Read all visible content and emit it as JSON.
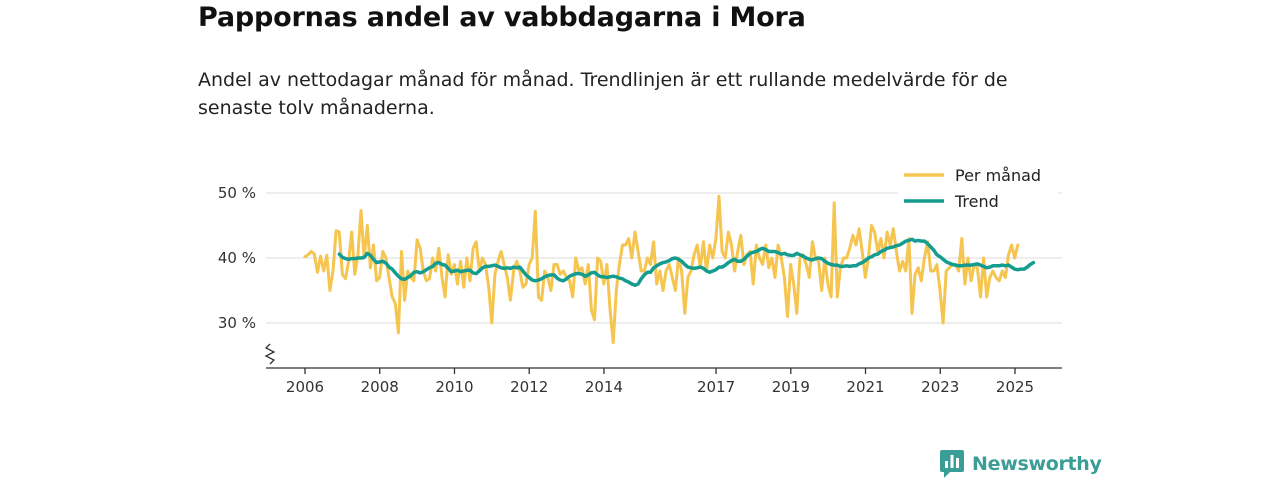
{
  "header": {
    "title": "Pappornas andel av vabbdagarna i Mora",
    "subtitle": "Andel av nettodagar månad för månad. Trendlinjen är ett rullande medelvärde för de senaste tolv månaderna."
  },
  "brand": {
    "name": "Newsworthy"
  },
  "colors": {
    "monthly": "#f6c550",
    "trend": "#149c8f",
    "grid": "#dddddd",
    "axis": "#333333"
  },
  "chart_data": {
    "type": "line",
    "x_start_year": 2006,
    "x_end_year": 2025.5,
    "ylim": [
      23,
      52
    ],
    "y_ticks": [
      30,
      40,
      50
    ],
    "y_tick_labels": [
      "30 %",
      "40 %",
      "50 %"
    ],
    "x_ticks": [
      2006,
      2008,
      2010,
      2012,
      2014,
      2017,
      2019,
      2021,
      2023,
      2025
    ],
    "x_tick_labels": [
      "2006",
      "2008",
      "2010",
      "2012",
      "2014",
      "2017",
      "2019",
      "2021",
      "2023",
      "2025"
    ],
    "legend": [
      "Per månad",
      "Trend"
    ],
    "legend_position": "top-right",
    "series": [
      {
        "name": "Per månad",
        "start": 2006.0,
        "step": 0.0833,
        "values": [
          40.2,
          40.5,
          41.0,
          40.6,
          37.8,
          40.3,
          38.0,
          40.4,
          35.0,
          38.0,
          44.2,
          44.0,
          37.5,
          36.8,
          39.5,
          44.0,
          37.5,
          40.5,
          47.3,
          40.0,
          45.0,
          38.5,
          42.0,
          36.5,
          37.0,
          41.0,
          40.0,
          37.0,
          34.0,
          33.0,
          28.5,
          41.0,
          33.5,
          38.0,
          37.0,
          36.5,
          42.8,
          41.5,
          38.0,
          36.5,
          36.8,
          40.0,
          38.0,
          41.5,
          37.0,
          34.0,
          40.5,
          37.5,
          39.0,
          36.0,
          39.5,
          35.5,
          40.0,
          36.5,
          41.5,
          42.5,
          38.0,
          40.0,
          39.0,
          35.5,
          30.0,
          37.5,
          39.5,
          41.0,
          39.0,
          37.0,
          33.5,
          38.0,
          39.5,
          38.0,
          35.5,
          36.0,
          39.0,
          40.0,
          47.2,
          34.0,
          33.5,
          38.0,
          37.0,
          35.0,
          39.0,
          39.0,
          37.5,
          38.0,
          37.0,
          36.5,
          34.0,
          40.0,
          38.0,
          38.5,
          36.0,
          39.0,
          32.0,
          30.5,
          40.0,
          39.5,
          36.0,
          39.0,
          32.0,
          27.0,
          35.0,
          39.0,
          42.0,
          42.0,
          43.0,
          40.0,
          44.0,
          41.0,
          38.0,
          38.0,
          40.0,
          39.0,
          42.5,
          36.0,
          38.0,
          35.0,
          38.0,
          39.0,
          37.0,
          35.0,
          40.0,
          38.0,
          31.5,
          37.0,
          38.0,
          40.5,
          42.0,
          38.5,
          42.5,
          38.0,
          42.0,
          40.0,
          43.0,
          49.5,
          41.0,
          40.0,
          44.0,
          42.0,
          38.0,
          41.0,
          43.5,
          39.0,
          40.5,
          41.0,
          36.0,
          42.0,
          40.0,
          39.0,
          42.0,
          38.5,
          40.0,
          37.0,
          42.0,
          40.0,
          37.0,
          31.0,
          39.0,
          36.0,
          31.5,
          40.0,
          40.5,
          39.0,
          37.0,
          42.5,
          40.0,
          39.5,
          35.0,
          40.0,
          36.0,
          34.0,
          48.5,
          34.0,
          38.5,
          40.0,
          40.0,
          41.5,
          43.5,
          42.0,
          44.5,
          41.0,
          37.0,
          40.0,
          45.0,
          44.0,
          41.0,
          43.0,
          40.0,
          44.0,
          42.0,
          44.5,
          41.0,
          38.0,
          39.5,
          38.0,
          43.0,
          31.5,
          37.5,
          38.5,
          36.5,
          40.0,
          42.5,
          38.0,
          38.0,
          39.0,
          35.0,
          30.0,
          38.0,
          38.5,
          39.0,
          39.0,
          38.0,
          43.0,
          36.0,
          40.0,
          36.5,
          39.0,
          38.5,
          34.0,
          40.0,
          34.0,
          37.0,
          38.0,
          37.0,
          36.5,
          38.0,
          37.0,
          40.5,
          42.0,
          40.0,
          42.0
        ]
      },
      {
        "name": "Trend",
        "start": 2006.917,
        "step": 0.0833,
        "values": [
          40.6,
          40.1,
          39.9,
          39.8,
          39.9,
          39.9,
          40.0,
          40.0,
          40.1,
          40.7,
          40.4,
          39.8,
          39.3,
          39.4,
          39.5,
          39.2,
          38.6,
          38.3,
          37.7,
          37.2,
          36.8,
          36.7,
          37.0,
          37.3,
          37.8,
          37.9,
          37.7,
          37.9,
          38.2,
          38.5,
          38.7,
          39.2,
          39.3,
          39.0,
          38.9,
          38.4,
          37.9,
          38.0,
          38.1,
          37.9,
          38.0,
          38.1,
          38.1,
          37.7,
          37.6,
          38.0,
          38.5,
          38.7,
          38.7,
          38.8,
          38.9,
          38.7,
          38.5,
          38.4,
          38.5,
          38.4,
          38.6,
          38.5,
          38.6,
          38.0,
          37.4,
          37.0,
          36.6,
          36.5,
          36.6,
          36.8,
          37.1,
          37.3,
          37.4,
          37.4,
          36.9,
          36.6,
          36.5,
          36.8,
          37.2,
          37.4,
          37.6,
          37.6,
          37.5,
          37.2,
          37.4,
          37.7,
          37.8,
          37.4,
          37.1,
          37.1,
          37.0,
          37.1,
          37.2,
          37.1,
          36.9,
          36.8,
          36.5,
          36.3,
          36.0,
          35.8,
          36.0,
          36.8,
          37.4,
          37.8,
          37.8,
          38.5,
          38.8,
          39.1,
          39.3,
          39.4,
          39.6,
          39.9,
          40.0,
          39.8,
          39.5,
          39.0,
          38.6,
          38.5,
          38.4,
          38.5,
          38.6,
          38.4,
          38.0,
          37.8,
          38.0,
          38.2,
          38.6,
          38.6,
          38.9,
          39.3,
          39.6,
          39.8,
          39.5,
          39.5,
          39.8,
          40.3,
          40.7,
          40.9,
          41.0,
          41.3,
          41.5,
          41.3,
          41.0,
          41.0,
          41.0,
          40.8,
          40.6,
          40.7,
          40.5,
          40.4,
          40.4,
          40.7,
          40.5,
          40.3,
          40.0,
          39.8,
          39.7,
          39.9,
          40.0,
          39.9,
          39.5,
          39.2,
          39.0,
          38.9,
          38.9,
          38.7,
          38.7,
          38.8,
          38.7,
          38.8,
          38.8,
          39.1,
          39.3,
          39.6,
          40.0,
          40.2,
          40.5,
          40.6,
          41.0,
          41.2,
          41.5,
          41.6,
          41.7,
          41.9,
          42.0,
          42.3,
          42.6,
          42.7,
          42.9,
          42.6,
          42.7,
          42.6,
          42.6,
          42.2,
          41.7,
          41.2,
          40.5,
          40.2,
          39.8,
          39.4,
          39.2,
          39.0,
          38.9,
          38.8,
          38.8,
          38.9,
          38.9,
          38.9,
          39.0,
          39.1,
          38.9,
          38.7,
          38.5,
          38.6,
          38.8,
          38.8,
          38.8,
          38.9,
          38.8,
          38.9,
          38.6,
          38.3,
          38.2,
          38.3,
          38.3,
          38.6,
          39.0,
          39.3
        ]
      }
    ]
  }
}
